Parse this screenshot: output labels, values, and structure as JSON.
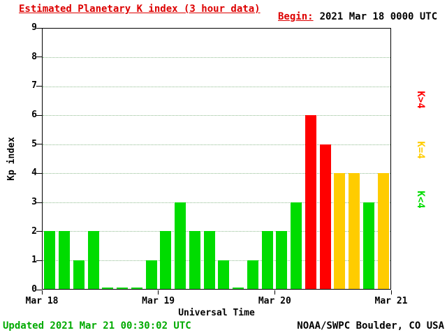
{
  "header": {
    "title": "Estimated Planetary K index (3 hour data)",
    "title_color": "#dd0000",
    "begin_label": "Begin:",
    "begin_value": "2021 Mar 18 0000 UTC"
  },
  "legend": [
    {
      "label": "K>4",
      "color": "#ff0000"
    },
    {
      "label": "K=4",
      "color": "#ffcc00"
    },
    {
      "label": "K<4",
      "color": "#00dc00"
    }
  ],
  "footer": {
    "updated": "Updated 2021 Mar 21 00:30:02 UTC",
    "updated_color": "#00aa00",
    "credit": "NOAA/SWPC Boulder, CO USA"
  },
  "chart_data": {
    "type": "bar",
    "title": "Estimated Planetary K index (3 hour data)",
    "xlabel": "Universal Time",
    "ylabel": "Kp index",
    "ylim": [
      0,
      9
    ],
    "yticks": [
      0,
      1,
      2,
      3,
      4,
      5,
      6,
      7,
      8,
      9
    ],
    "x_tick_labels": [
      "Mar 18",
      "Mar 19",
      "Mar 20",
      "Mar 21"
    ],
    "interval_hours": 3,
    "begin": "2021 Mar 18 0000 UTC",
    "values": [
      2,
      2,
      1,
      2,
      0,
      0,
      0,
      1,
      2,
      3,
      2,
      2,
      1,
      0,
      1,
      2,
      2,
      3,
      6,
      5,
      4,
      4,
      3,
      4
    ],
    "colors": {
      "k_gt_4": "#ff0000",
      "k_eq_4": "#ffcc00",
      "k_lt_4": "#00dc00"
    },
    "grid": {
      "style": "dotted",
      "color": "#8fbc8f",
      "orientation": "horizontal"
    },
    "legend_position": "right"
  }
}
